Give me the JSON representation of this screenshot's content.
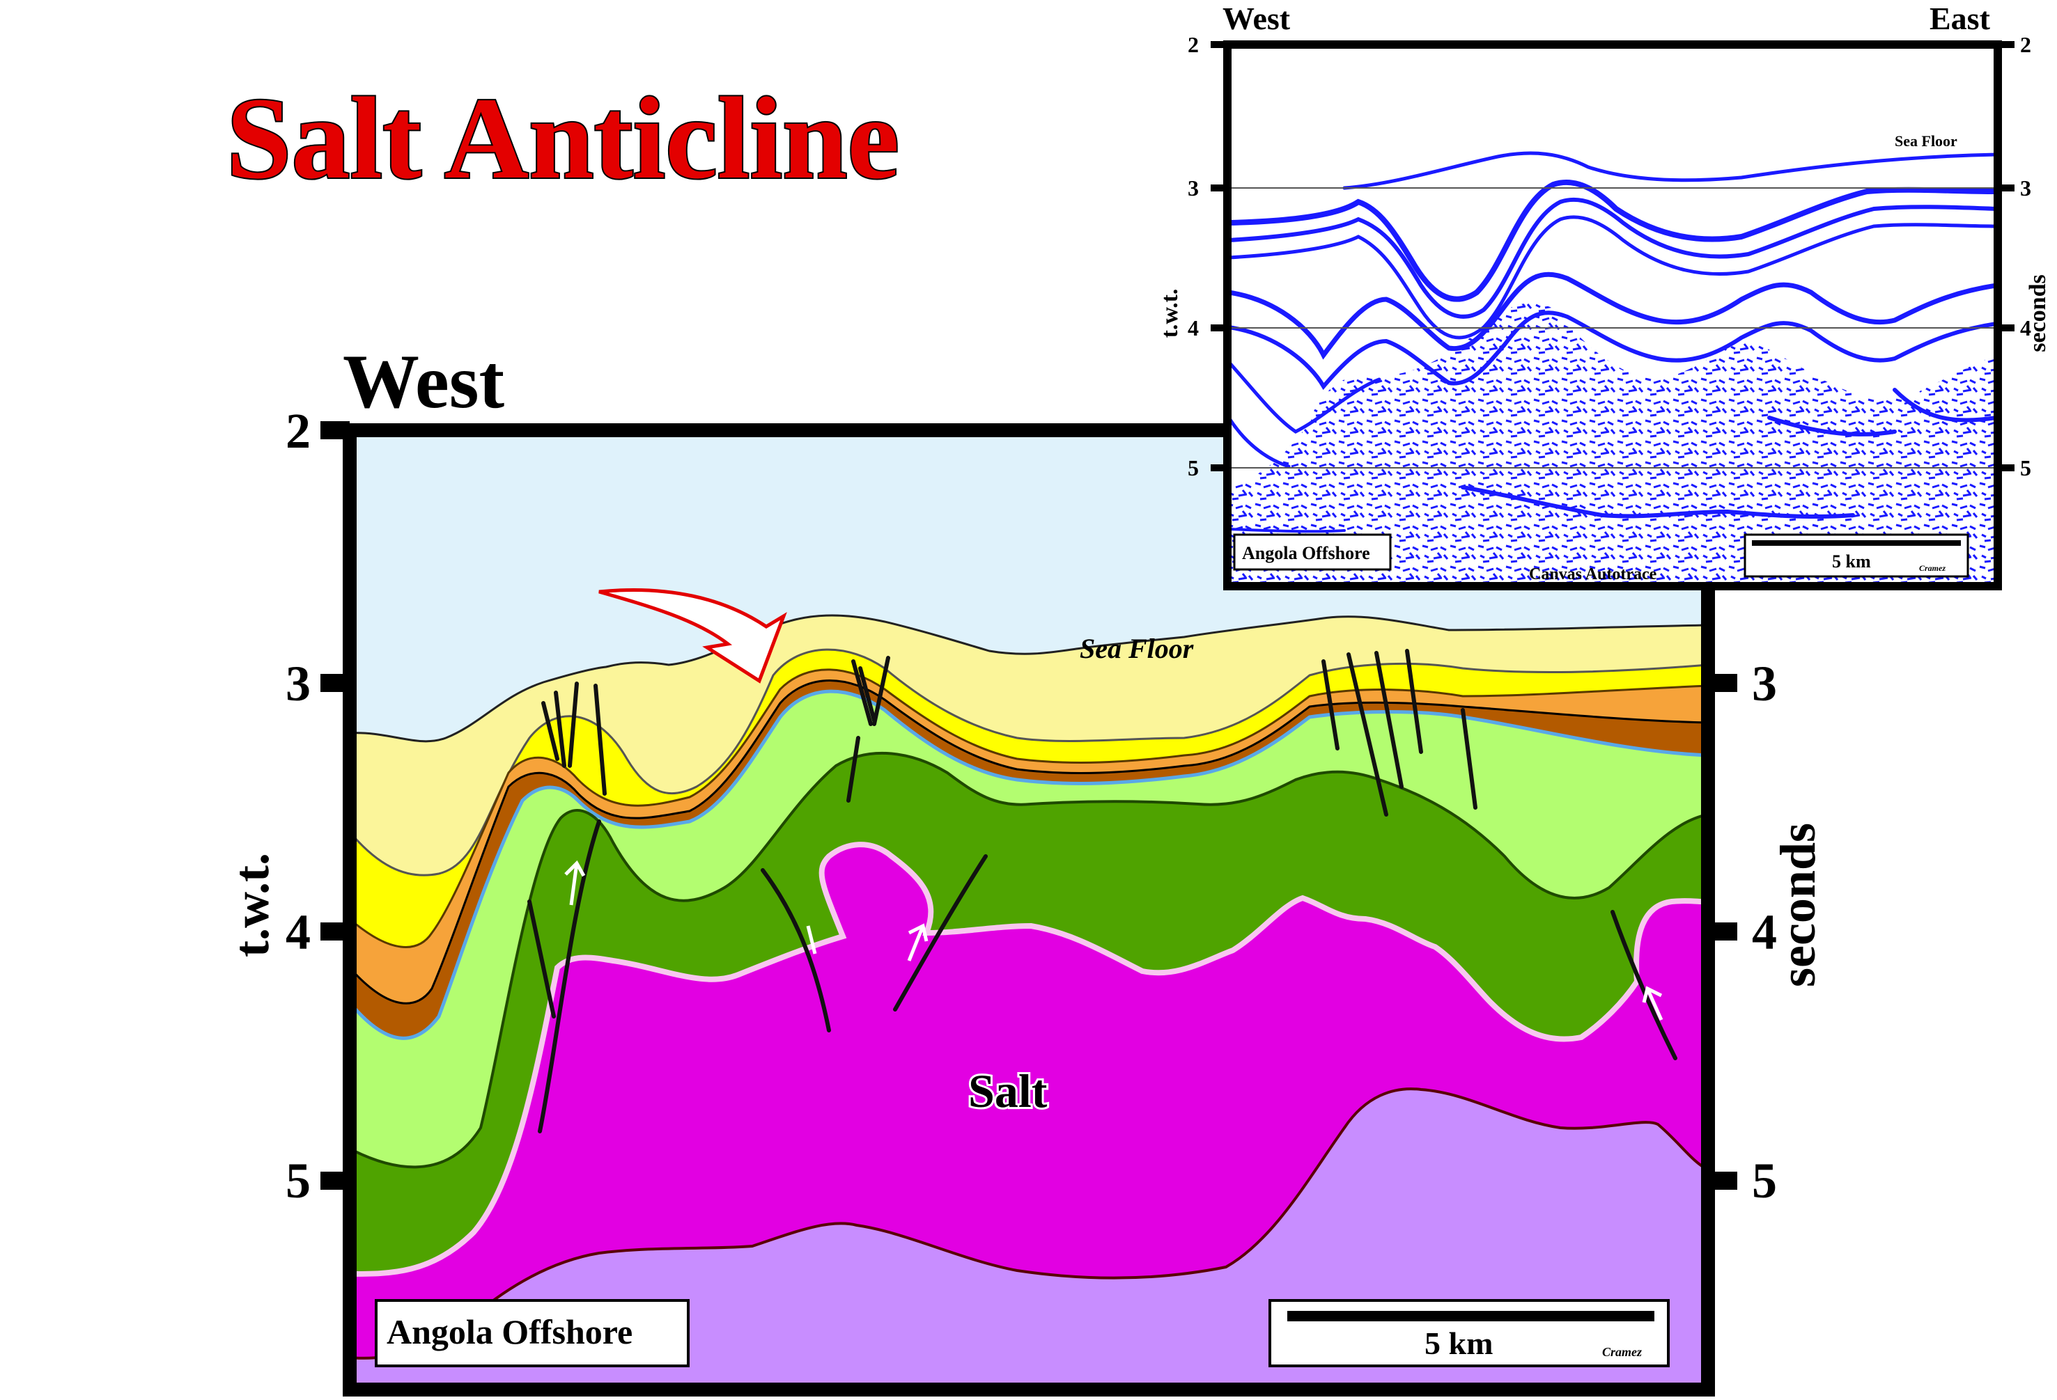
{
  "title": "Salt Anticline",
  "main_section": {
    "direction_left": "West",
    "axis_ticks": [
      "2",
      "3",
      "4",
      "5"
    ],
    "left_axis_label": "t.w.t.",
    "right_axis_label": "seconds",
    "sea_floor_label": "Sea Floor",
    "salt_label": "Salt",
    "location_box": "Angola Offshore",
    "scale_label": "5 km",
    "credit": "Cramez"
  },
  "inset_seismic": {
    "direction_left": "West",
    "direction_right": "East",
    "axis_ticks": [
      "2",
      "3",
      "4",
      "5"
    ],
    "left_axis_label": "t.w.t.",
    "right_axis_label": "seconds",
    "sea_floor_label": "Sea Floor",
    "location_box": "Angola Offshore",
    "scale_label": "5 km",
    "credit": "Cramez",
    "watermark": "Canvas Autotrace"
  },
  "colors": {
    "water": "#dff2fb",
    "pale_yellow": "#fbf59a",
    "yellow": "#ffff00",
    "orange": "#f6a33a",
    "brown": "#b35a00",
    "light_green": "#b3fd70",
    "green": "#4fa300",
    "salt": "#e200e2",
    "basement": "#c88dff",
    "arrow": "#e30000",
    "seismic_blue": "#1a1aff"
  }
}
